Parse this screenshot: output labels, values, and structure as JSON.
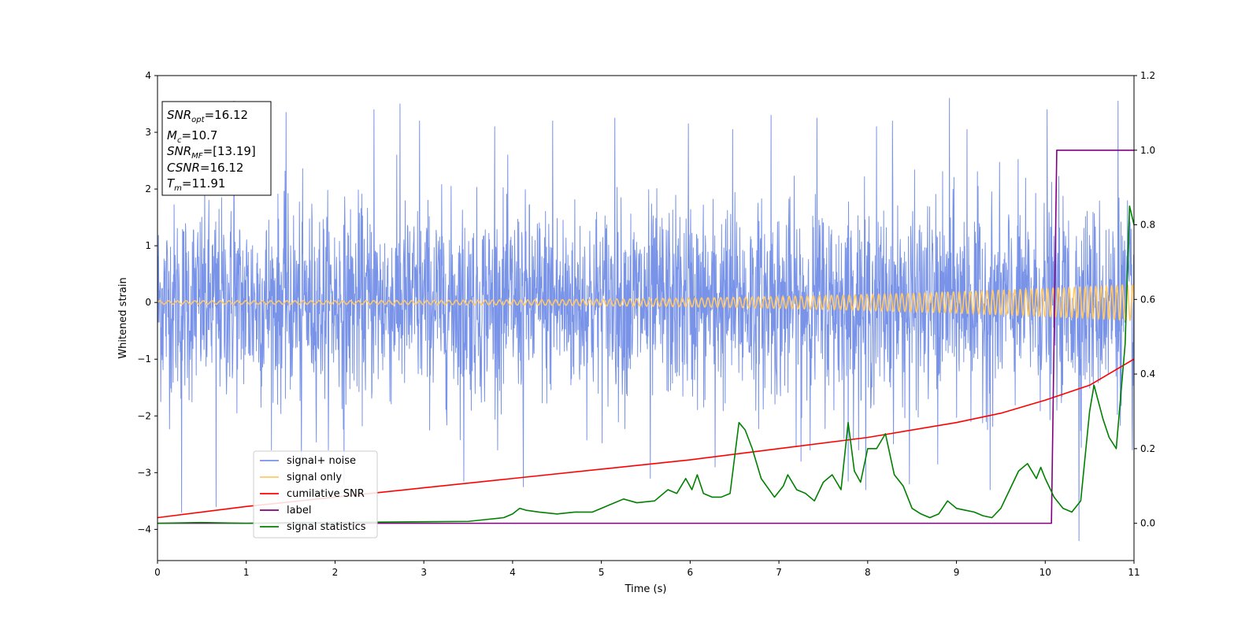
{
  "chart_data": {
    "type": "line",
    "title": "",
    "xlabel": "Time (s)",
    "ylabel": "Whitened strain",
    "xlim": [
      0,
      11
    ],
    "ylim": [
      -4.55,
      4.0
    ],
    "y2lim": [
      -0.1,
      1.2
    ],
    "x_ticks": [
      "0",
      "1",
      "2",
      "3",
      "4",
      "5",
      "6",
      "7",
      "8",
      "9",
      "10",
      "11"
    ],
    "y_ticks": [
      "4",
      "3",
      "2",
      "1",
      "0",
      "−1",
      "−2",
      "−3",
      "−4"
    ],
    "y2_ticks": [
      "1.2",
      "1.0",
      "0.8",
      "0.6",
      "0.4",
      "0.2",
      "0.0"
    ],
    "grid": false,
    "legend_position": "lower-left",
    "annotation": {
      "lines": [
        {
          "base": "SNR",
          "sub": "opt",
          "value": "=16.12"
        },
        {
          "base": "M",
          "sub": "c",
          "value": "=10.7"
        },
        {
          "base": "SNR",
          "sub": "MF",
          "value": "=[13.19]"
        },
        {
          "base": "CSNR",
          "sub": "",
          "value": "=16.12"
        },
        {
          "base": "T",
          "sub": "m",
          "value": "=11.91"
        }
      ]
    },
    "series": [
      {
        "name": "signal+ noise",
        "axis": "left",
        "color": "#7993e8",
        "style": "noise",
        "sigma": 0.85,
        "peak_values": [
          [
            0.27,
            -3.7
          ],
          [
            0.66,
            -3.6
          ],
          [
            0.86,
            3.55
          ],
          [
            1.45,
            3.35
          ],
          [
            1.62,
            -2.9
          ],
          [
            2.1,
            -3.2
          ],
          [
            2.44,
            3.4
          ],
          [
            2.73,
            3.5
          ],
          [
            2.95,
            3.2
          ],
          [
            3.45,
            -3.15
          ],
          [
            3.8,
            3.1
          ],
          [
            4.12,
            -3.25
          ],
          [
            4.45,
            3.2
          ],
          [
            5.15,
            3.25
          ],
          [
            5.55,
            -3.1
          ],
          [
            5.98,
            3.15
          ],
          [
            6.28,
            -2.9
          ],
          [
            6.48,
            3.05
          ],
          [
            6.91,
            3.3
          ],
          [
            7.25,
            -2.8
          ],
          [
            7.43,
            3.25
          ],
          [
            7.78,
            -3.15
          ],
          [
            7.98,
            -3.3
          ],
          [
            8.1,
            3.1
          ],
          [
            8.28,
            3.2
          ],
          [
            8.47,
            -3.2
          ],
          [
            8.79,
            -2.85
          ],
          [
            8.92,
            3.6
          ],
          [
            9.12,
            3.05
          ],
          [
            9.38,
            -3.3
          ],
          [
            10.02,
            3.4
          ],
          [
            10.38,
            -4.2
          ],
          [
            10.82,
            3.55
          ],
          [
            10.98,
            -2.6
          ]
        ]
      },
      {
        "name": "signal only",
        "axis": "left",
        "color": "#ffc868",
        "style": "chirp",
        "amplitude_start": 0.03,
        "amplitude_end": 0.32
      },
      {
        "name": "cumilative SNR",
        "axis": "right",
        "color": "#ff0000",
        "x": [
          0,
          1,
          2,
          3,
          4,
          5,
          6,
          7,
          8,
          9,
          9.5,
          10,
          10.5,
          11
        ],
        "y": [
          0.015,
          0.045,
          0.07,
          0.095,
          0.12,
          0.145,
          0.17,
          0.2,
          0.23,
          0.27,
          0.295,
          0.33,
          0.37,
          0.44
        ]
      },
      {
        "name": "label",
        "axis": "right",
        "color": "#800080",
        "x": [
          0,
          10.07,
          10.13,
          11
        ],
        "y": [
          0.0,
          0.0,
          1.0,
          1.0
        ]
      },
      {
        "name": "signal statistics",
        "axis": "right",
        "color": "#008000",
        "x": [
          0,
          0.5,
          1,
          1.5,
          2,
          2.5,
          3,
          3.5,
          3.7,
          3.9,
          4.0,
          4.08,
          4.15,
          4.3,
          4.5,
          4.7,
          4.9,
          5.1,
          5.25,
          5.4,
          5.6,
          5.75,
          5.85,
          5.95,
          6.02,
          6.08,
          6.15,
          6.25,
          6.35,
          6.45,
          6.55,
          6.62,
          6.7,
          6.8,
          6.95,
          7.05,
          7.1,
          7.2,
          7.3,
          7.4,
          7.5,
          7.6,
          7.7,
          7.78,
          7.85,
          7.92,
          8.0,
          8.1,
          8.2,
          8.3,
          8.4,
          8.5,
          8.6,
          8.7,
          8.8,
          8.9,
          9.0,
          9.1,
          9.2,
          9.3,
          9.4,
          9.5,
          9.6,
          9.7,
          9.8,
          9.9,
          9.95,
          10.0,
          10.1,
          10.2,
          10.3,
          10.4,
          10.5,
          10.55,
          10.65,
          10.72,
          10.8,
          10.9,
          10.95,
          11.0
        ],
        "y": [
          0.0,
          0.002,
          0.0,
          0.002,
          0.002,
          0.003,
          0.004,
          0.005,
          0.01,
          0.015,
          0.025,
          0.04,
          0.035,
          0.03,
          0.025,
          0.03,
          0.03,
          0.05,
          0.065,
          0.055,
          0.06,
          0.09,
          0.08,
          0.12,
          0.09,
          0.13,
          0.08,
          0.07,
          0.07,
          0.08,
          0.27,
          0.25,
          0.2,
          0.12,
          0.07,
          0.1,
          0.13,
          0.09,
          0.08,
          0.06,
          0.11,
          0.13,
          0.09,
          0.27,
          0.14,
          0.11,
          0.2,
          0.2,
          0.24,
          0.13,
          0.1,
          0.04,
          0.025,
          0.015,
          0.025,
          0.06,
          0.04,
          0.035,
          0.03,
          0.02,
          0.015,
          0.04,
          0.09,
          0.14,
          0.16,
          0.12,
          0.15,
          0.12,
          0.07,
          0.04,
          0.03,
          0.06,
          0.3,
          0.37,
          0.28,
          0.23,
          0.2,
          0.48,
          0.85,
          0.8
        ]
      }
    ]
  }
}
